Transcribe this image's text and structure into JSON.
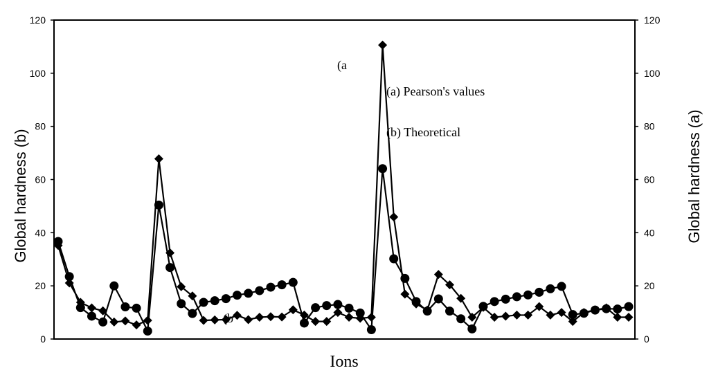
{
  "chart_data": {
    "type": "line",
    "xlabel": "Ions",
    "ylabel_left": "Global hardness (b)",
    "ylabel_right": "Global hardness (a)",
    "ylim": [
      0,
      120
    ],
    "yticks": [
      0,
      20,
      40,
      60,
      80,
      100,
      120
    ],
    "series": [
      {
        "name": "Pearson's values",
        "label": "(a) Pearson's values",
        "axis": "right",
        "marker": "diamond",
        "values": [
          35.2,
          21.1,
          13.8,
          11.7,
          10.6,
          6.4,
          6.8,
          5.3,
          7.0,
          67.8,
          32.4,
          19.7,
          16.2,
          7.0,
          7.2,
          7.3,
          8.9,
          7.3,
          8.2,
          8.4,
          8.3,
          11.0,
          9.0,
          6.6,
          6.6,
          10.0,
          8.2,
          7.8,
          8.2,
          110.6,
          45.9,
          16.9,
          13.2,
          10.9,
          24.3,
          20.4,
          15.3,
          8.2,
          11.9,
          8.2,
          8.6,
          9.0,
          9.0,
          12.2,
          9.0,
          10.0,
          6.6,
          10.0,
          10.9,
          11.7,
          8.2,
          8.2
        ]
      },
      {
        "name": "Theoretical",
        "label": "(b) Theoretical",
        "axis": "left",
        "marker": "circle",
        "values": [
          36.7,
          23.5,
          11.8,
          8.6,
          6.4,
          20.0,
          12.1,
          11.6,
          3.0,
          50.4,
          26.9,
          13.3,
          9.6,
          13.8,
          14.4,
          15.2,
          16.5,
          17.2,
          18.2,
          19.5,
          20.4,
          21.3,
          6.0,
          11.8,
          12.6,
          13.0,
          11.6,
          9.8,
          3.5,
          64.1,
          30.2,
          22.8,
          14.1,
          10.5,
          15.1,
          10.5,
          7.6,
          3.8,
          12.3,
          14.1,
          15.0,
          15.9,
          16.6,
          17.6,
          18.9,
          19.8,
          9.2,
          9.7,
          10.9,
          11.4,
          11.3,
          12.2
        ]
      }
    ],
    "annotations": [
      {
        "id": "a_marker",
        "text": "(a"
      },
      {
        "id": "b_marker",
        "text": "(b"
      }
    ]
  }
}
